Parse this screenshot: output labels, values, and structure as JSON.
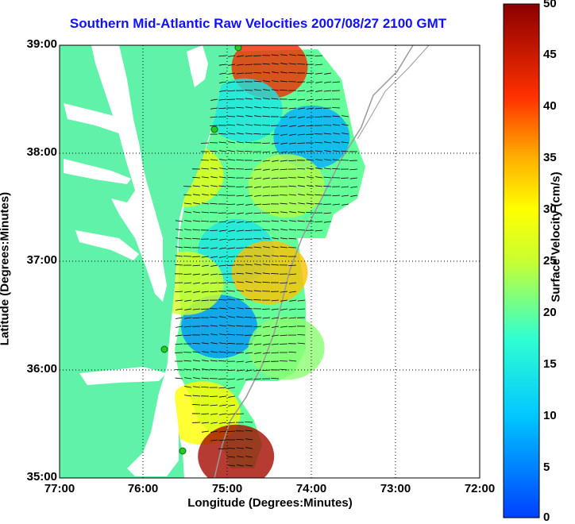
{
  "title": "Southern Mid-Atlantic Raw Velocities 2007/08/27 2100 GMT",
  "x_axis": {
    "label": "Longitude (Degrees:Minutes)",
    "ticks": [
      "77:00",
      "76:00",
      "75:00",
      "74:00",
      "73:00",
      "72:00"
    ]
  },
  "y_axis": {
    "label": "Latitude (Degrees:Minutes)",
    "ticks": [
      "39:00",
      "38:00",
      "37:00",
      "36:00",
      "35:00"
    ]
  },
  "colorbar": {
    "title": "Surface Velocity (cm/s)",
    "ticks": [
      "50",
      "45",
      "40",
      "35",
      "30",
      "25",
      "20",
      "15",
      "10",
      "5",
      "0"
    ],
    "range": [
      0,
      50
    ],
    "colormap": "jet"
  },
  "map": {
    "lon_range": [
      -77,
      -72
    ],
    "lat_range": [
      35,
      39
    ],
    "land_color": "#5ff2a8",
    "grid": "dotted",
    "arrow_color": "#000000",
    "station_color": "#22cc22"
  },
  "chart_data": {
    "type": "heatmap",
    "title": "Southern Mid-Atlantic Raw Velocities 2007/08/27 2100 GMT",
    "xlabel": "Longitude (Degrees:Minutes)",
    "ylabel": "Latitude (Degrees:Minutes)",
    "xlim": [
      -77,
      -72
    ],
    "ylim": [
      35,
      39
    ],
    "colorbar_label": "Surface Velocity (cm/s)",
    "colorbar_range": [
      0,
      50
    ],
    "grid": true,
    "regions": [
      {
        "lon": -74.5,
        "lat": 38.8,
        "speed": 42
      },
      {
        "lon": -74.0,
        "lat": 38.15,
        "speed": 8
      },
      {
        "lon": -74.8,
        "lat": 38.4,
        "speed": 14
      },
      {
        "lon": -74.3,
        "lat": 37.7,
        "speed": 24
      },
      {
        "lon": -75.5,
        "lat": 37.8,
        "speed": 28
      },
      {
        "lon": -74.9,
        "lat": 37.1,
        "speed": 14
      },
      {
        "lon": -74.5,
        "lat": 36.9,
        "speed": 34
      },
      {
        "lon": -75.1,
        "lat": 36.4,
        "speed": 6
      },
      {
        "lon": -74.3,
        "lat": 36.2,
        "speed": 22
      },
      {
        "lon": -75.5,
        "lat": 36.8,
        "speed": 26
      },
      {
        "lon": -75.3,
        "lat": 35.6,
        "speed": 30
      },
      {
        "lon": -74.9,
        "lat": 35.2,
        "speed": 48
      }
    ]
  }
}
